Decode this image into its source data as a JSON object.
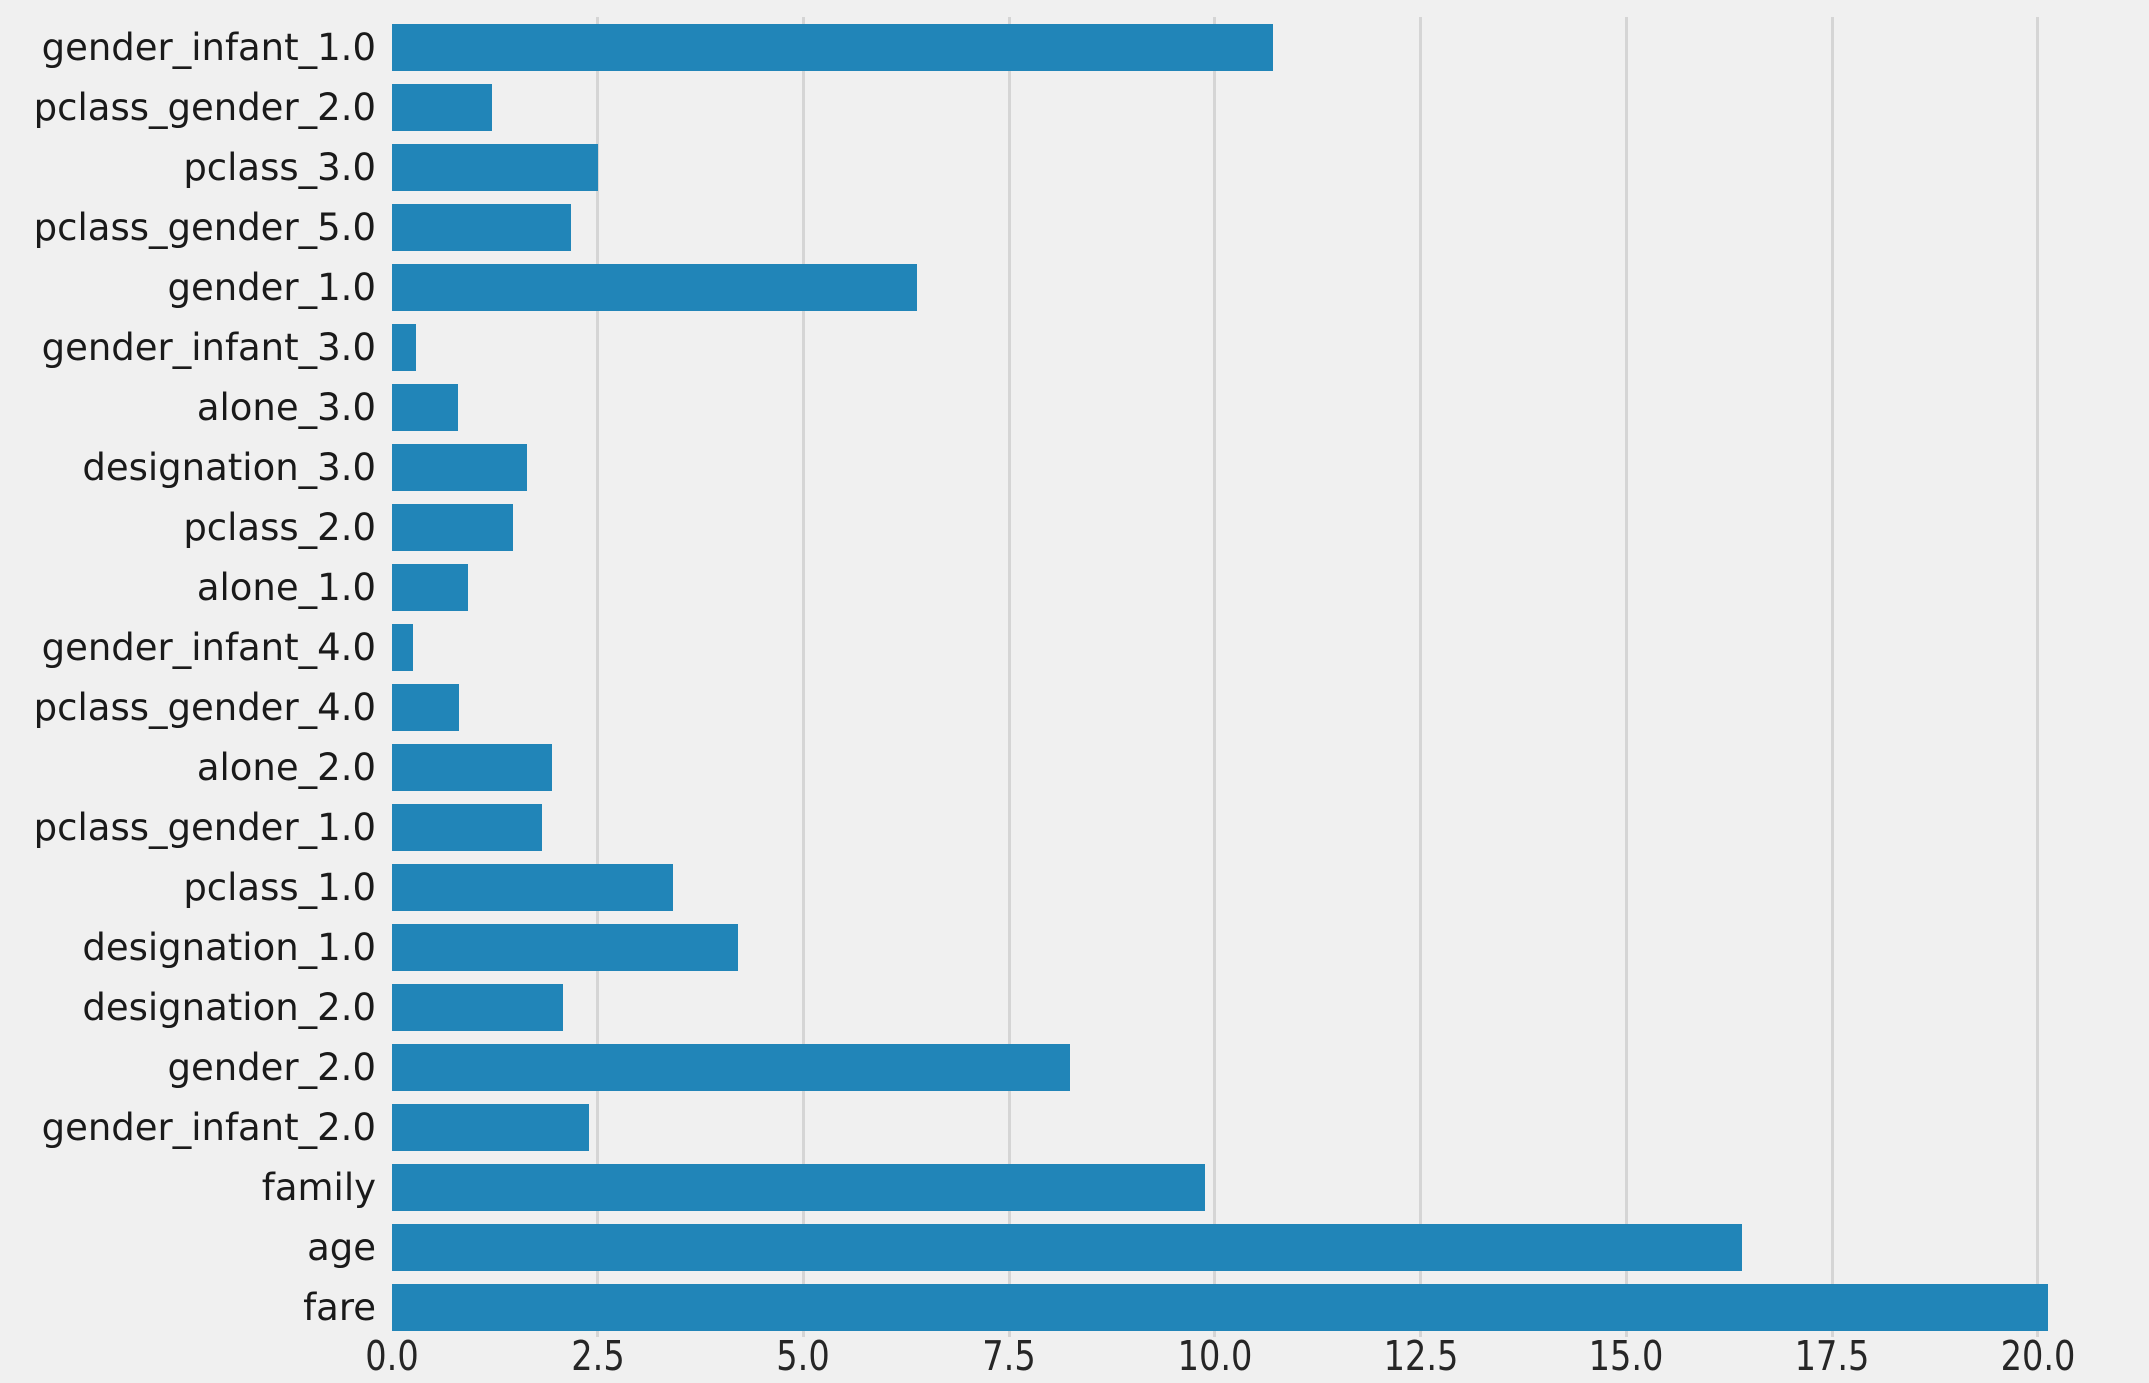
{
  "colors": {
    "background": "#f0f0f0",
    "bar": "#2185b8",
    "gridline": "#d5d5d5",
    "label_text": "#1a1a1a",
    "tick_text": "#262626"
  },
  "chart_data": {
    "type": "bar",
    "orientation": "horizontal",
    "title": "",
    "xlabel": "",
    "ylabel": "",
    "categories": [
      "gender_infant_1.0",
      "pclass_gender_2.0",
      "pclass_3.0",
      "pclass_gender_5.0",
      "gender_1.0",
      "gender_infant_3.0",
      "alone_3.0",
      "designation_3.0",
      "pclass_2.0",
      "alone_1.0",
      "gender_infant_4.0",
      "pclass_gender_4.0",
      "alone_2.0",
      "pclass_gender_1.0",
      "pclass_1.0",
      "designation_1.0",
      "designation_2.0",
      "gender_2.0",
      "gender_infant_2.0",
      "family",
      "age",
      "fare"
    ],
    "values": [
      10.71,
      1.22,
      2.5,
      2.18,
      6.38,
      0.29,
      0.8,
      1.64,
      1.47,
      0.92,
      0.26,
      0.81,
      1.94,
      1.82,
      3.42,
      4.2,
      2.08,
      8.24,
      2.4,
      9.88,
      16.4,
      20.12
    ],
    "x_ticks": [
      0.0,
      2.5,
      5.0,
      7.5,
      10.0,
      12.5,
      15.0,
      17.5,
      20.0
    ],
    "x_tick_labels": [
      "0.0",
      "2.5",
      "5.0",
      "7.5",
      "10.0",
      "12.5",
      "15.0",
      "17.5",
      "20.0"
    ],
    "xlim": [
      0,
      20.95
    ],
    "grid": true,
    "grid_axis": "x",
    "legend": false,
    "grid_at_zero": false
  }
}
